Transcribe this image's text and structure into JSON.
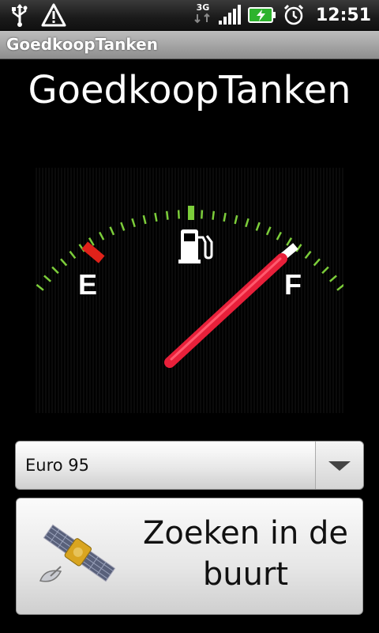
{
  "status_bar": {
    "time": "12:51",
    "network_type": "3G",
    "icons": [
      "usb-icon",
      "warning-icon",
      "network-3g-icon",
      "signal-icon",
      "battery-charging-icon",
      "alarm-icon"
    ]
  },
  "app": {
    "window_title": "GoedkoopTanken",
    "headline": "GoedkoopTanken"
  },
  "gauge": {
    "empty_label": "E",
    "full_label": "F",
    "fuel_level": 1.0,
    "icon": "fuel-pump-icon"
  },
  "fuel_select": {
    "selected": "Euro 95"
  },
  "search_button": {
    "line1": "Zoeken in de",
    "line2": "buurt",
    "icon": "satellite-icon"
  }
}
